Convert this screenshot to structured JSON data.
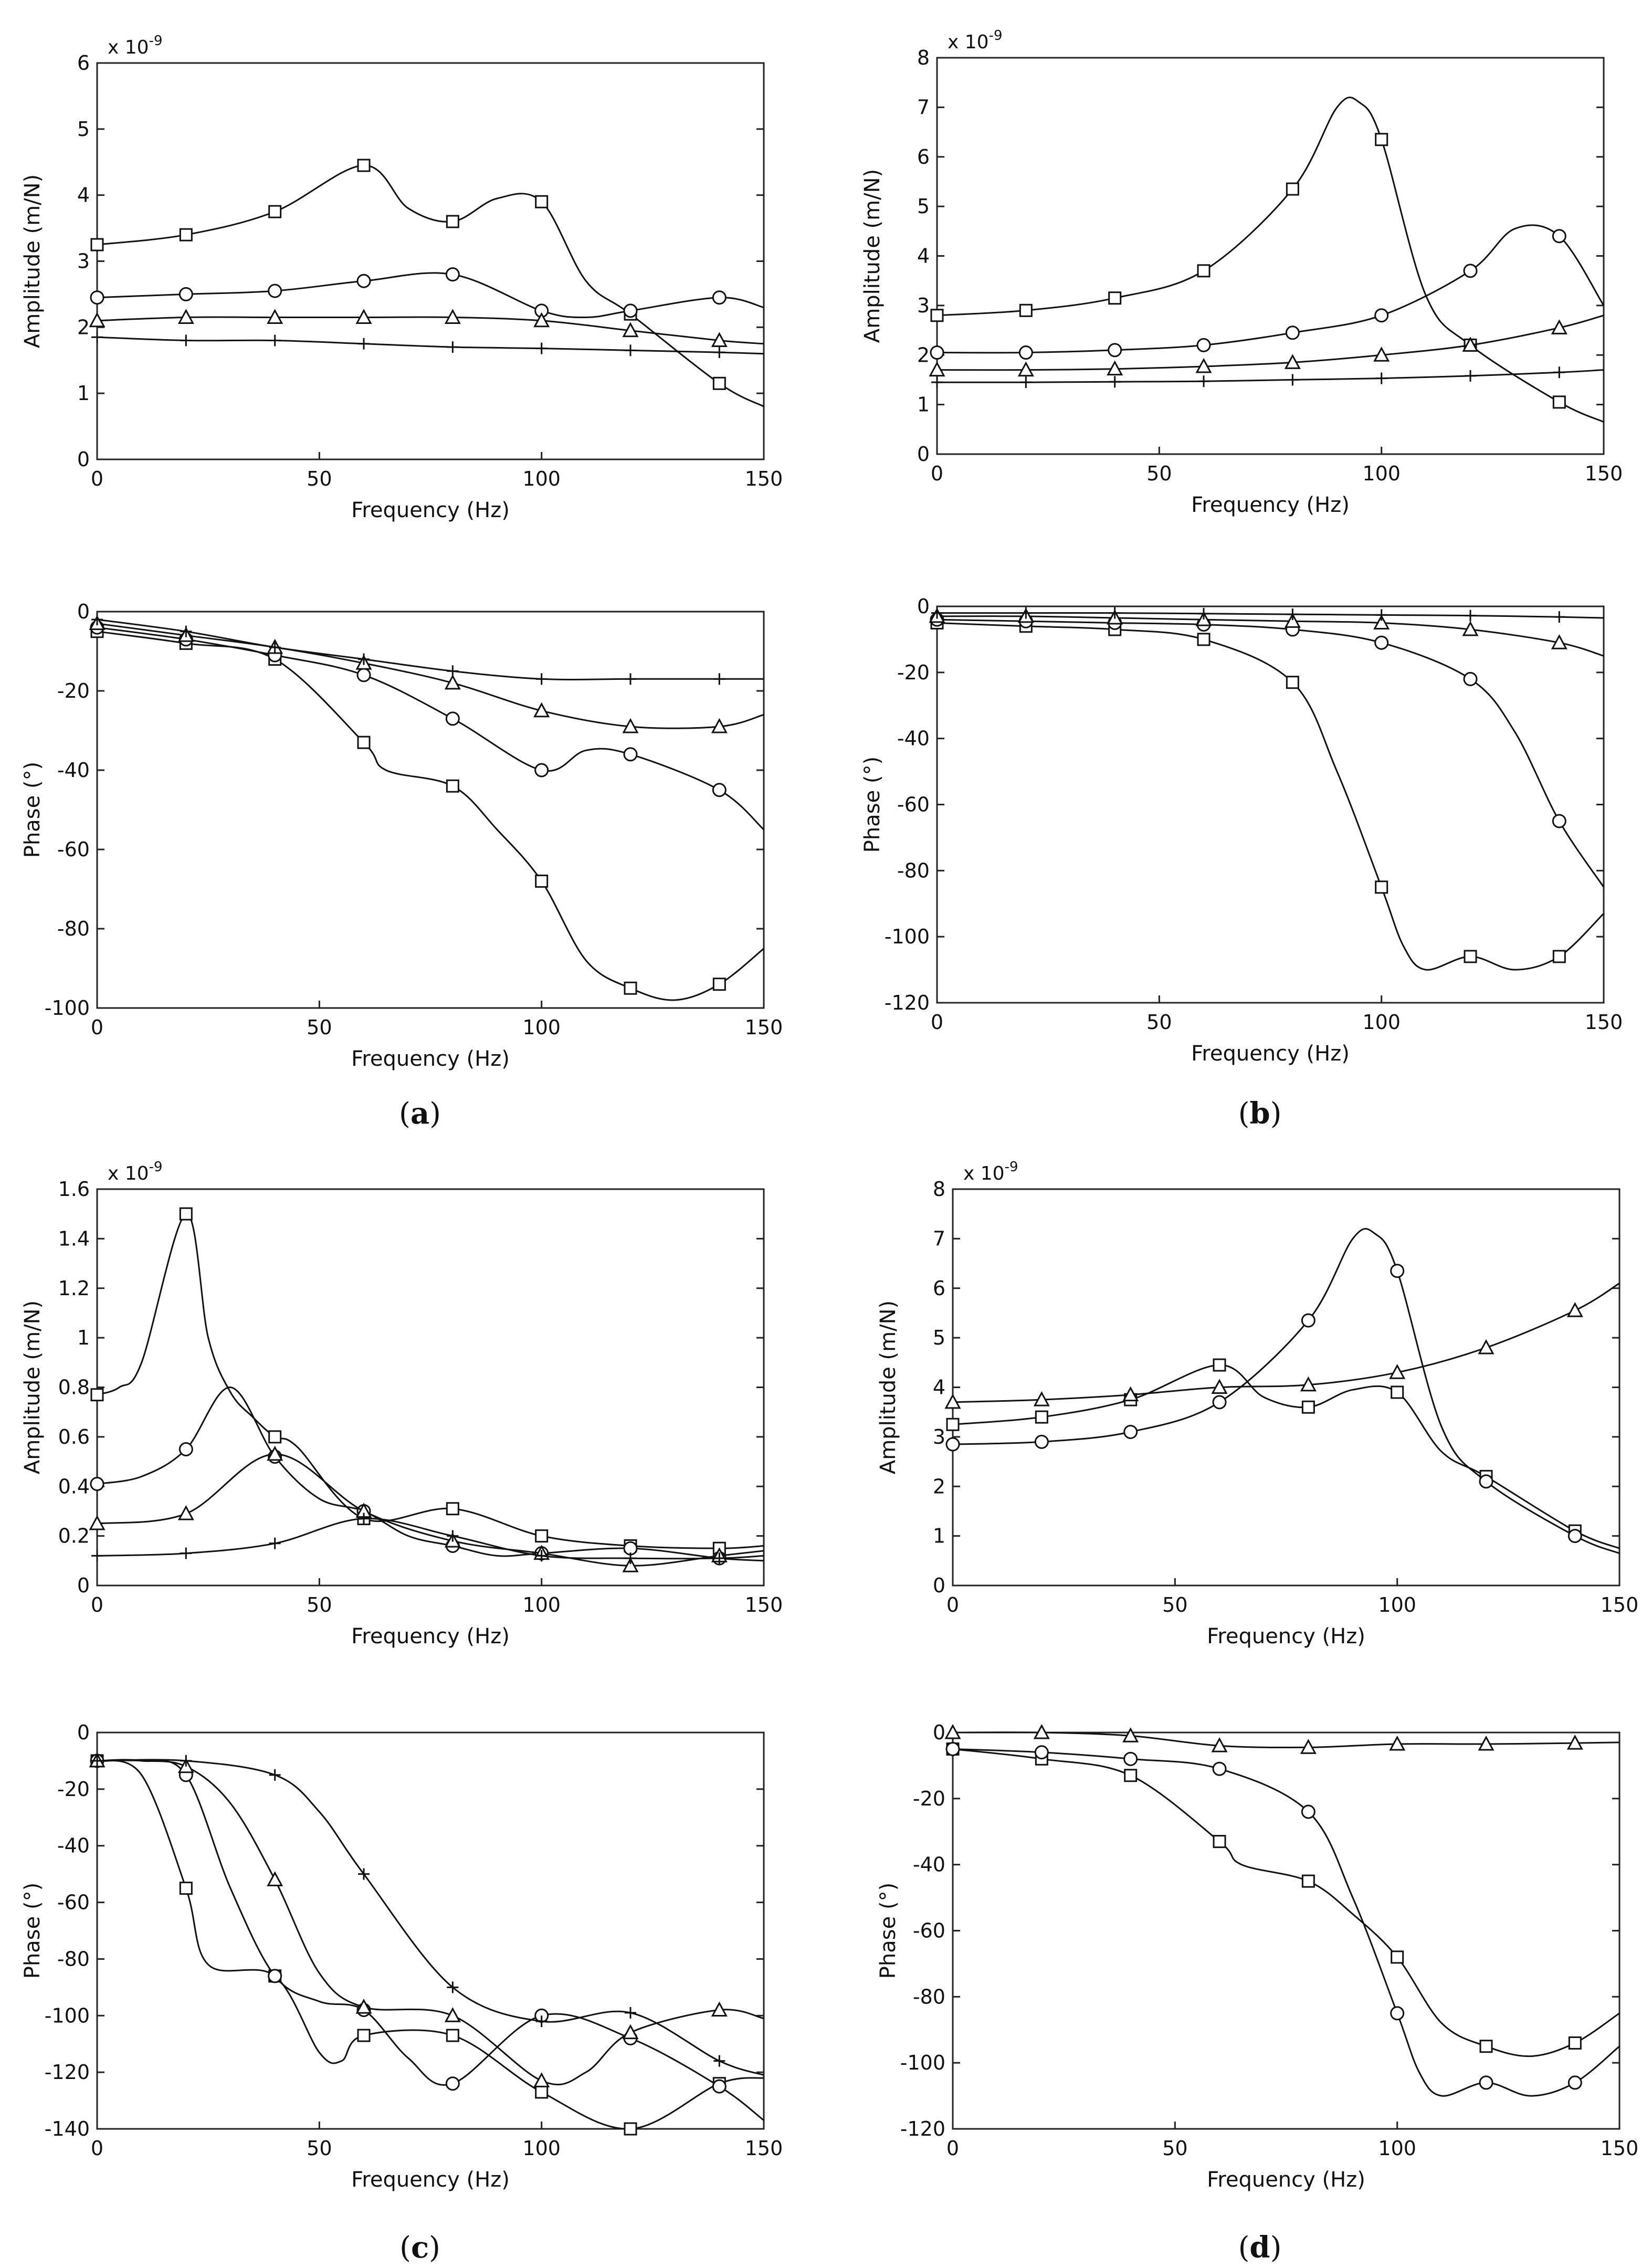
{
  "figure": {
    "panel_labels": [
      {
        "open": "(",
        "letter": "a",
        "close": ")"
      },
      {
        "open": "(",
        "letter": "b",
        "close": ")"
      },
      {
        "open": "(",
        "letter": "c",
        "close": ")"
      },
      {
        "open": "(",
        "letter": "d",
        "close": ")"
      }
    ]
  },
  "chart_data": [
    {
      "id": "a_amp",
      "type": "line",
      "panel": "a",
      "xlabel": "Frequency (Hz)",
      "ylabel": "Amplitude (m/N)",
      "xlim": [
        0,
        150
      ],
      "ylim": [
        0,
        6
      ],
      "xticks": [
        "0",
        "50",
        "100",
        "150"
      ],
      "yticks": [
        "0",
        "1",
        "2",
        "3",
        "4",
        "5",
        "6"
      ],
      "exponent": {
        "base": "x 10",
        "power": "-9"
      },
      "series": [
        {
          "marker": "square",
          "x": [
            0,
            20,
            40,
            60,
            70,
            80,
            90,
            100,
            110,
            120,
            140,
            150
          ],
          "y": [
            3.25,
            3.4,
            3.75,
            4.45,
            3.8,
            3.6,
            3.95,
            3.9,
            2.7,
            2.2,
            1.15,
            0.8
          ]
        },
        {
          "marker": "circle",
          "x": [
            0,
            20,
            40,
            60,
            80,
            100,
            110,
            120,
            140,
            150
          ],
          "y": [
            2.45,
            2.5,
            2.55,
            2.7,
            2.8,
            2.25,
            2.15,
            2.25,
            2.45,
            2.3
          ]
        },
        {
          "marker": "triangle",
          "x": [
            0,
            20,
            40,
            60,
            80,
            100,
            120,
            140,
            150
          ],
          "y": [
            2.1,
            2.15,
            2.15,
            2.15,
            2.15,
            2.1,
            1.95,
            1.8,
            1.75
          ]
        },
        {
          "marker": "plus",
          "x": [
            0,
            20,
            40,
            60,
            80,
            100,
            120,
            140,
            150
          ],
          "y": [
            1.85,
            1.8,
            1.8,
            1.75,
            1.7,
            1.68,
            1.65,
            1.62,
            1.6
          ]
        }
      ]
    },
    {
      "id": "a_phase",
      "type": "line",
      "panel": "a",
      "xlabel": "Frequency (Hz)",
      "ylabel": "Phase (°)",
      "xlim": [
        0,
        150
      ],
      "ylim": [
        -100,
        0
      ],
      "xticks": [
        "0",
        "50",
        "100",
        "150"
      ],
      "yticks": [
        "-100",
        "-80",
        "-60",
        "-40",
        "-20",
        "0"
      ],
      "series": [
        {
          "marker": "square",
          "x": [
            0,
            20,
            40,
            60,
            65,
            80,
            90,
            100,
            110,
            120,
            130,
            140,
            150
          ],
          "y": [
            -5,
            -8,
            -12,
            -33,
            -40,
            -44,
            -55,
            -68,
            -88,
            -95,
            -98,
            -94,
            -85
          ]
        },
        {
          "marker": "circle",
          "x": [
            0,
            20,
            40,
            60,
            80,
            100,
            110,
            120,
            140,
            150
          ],
          "y": [
            -4,
            -7,
            -11,
            -16,
            -27,
            -40,
            -35,
            -36,
            -45,
            -55
          ]
        },
        {
          "marker": "triangle",
          "x": [
            0,
            20,
            40,
            60,
            80,
            100,
            120,
            140,
            150
          ],
          "y": [
            -3,
            -6,
            -9,
            -13,
            -18,
            -25,
            -29,
            -29,
            -26
          ]
        },
        {
          "marker": "plus",
          "x": [
            0,
            20,
            40,
            60,
            80,
            100,
            120,
            140,
            150
          ],
          "y": [
            -2,
            -5,
            -9,
            -12,
            -15,
            -17,
            -17,
            -17,
            -17
          ]
        }
      ]
    },
    {
      "id": "b_amp",
      "type": "line",
      "panel": "b",
      "xlabel": "Frequency (Hz)",
      "ylabel": "Amplitude (m/N)",
      "xlim": [
        0,
        150
      ],
      "ylim": [
        0,
        8
      ],
      "xticks": [
        "0",
        "50",
        "100",
        "150"
      ],
      "yticks": [
        "0",
        "1",
        "2",
        "3",
        "4",
        "5",
        "6",
        "7",
        "8"
      ],
      "exponent": {
        "base": "x 10",
        "power": "-9"
      },
      "series": [
        {
          "marker": "square",
          "x": [
            0,
            20,
            40,
            60,
            80,
            90,
            95,
            100,
            110,
            120,
            140,
            150
          ],
          "y": [
            2.8,
            2.9,
            3.15,
            3.7,
            5.35,
            7.0,
            7.1,
            6.35,
            3.2,
            2.2,
            1.05,
            0.65
          ]
        },
        {
          "marker": "circle",
          "x": [
            0,
            20,
            40,
            60,
            80,
            100,
            120,
            130,
            140,
            150
          ],
          "y": [
            2.05,
            2.05,
            2.1,
            2.2,
            2.45,
            2.8,
            3.7,
            4.55,
            4.4,
            3.0
          ]
        },
        {
          "marker": "triangle",
          "x": [
            0,
            20,
            40,
            60,
            80,
            100,
            120,
            140,
            150
          ],
          "y": [
            1.7,
            1.7,
            1.72,
            1.77,
            1.85,
            2.0,
            2.2,
            2.55,
            2.8
          ]
        },
        {
          "marker": "plus",
          "x": [
            0,
            20,
            40,
            60,
            80,
            100,
            120,
            140,
            150
          ],
          "y": [
            1.45,
            1.45,
            1.46,
            1.47,
            1.5,
            1.53,
            1.58,
            1.65,
            1.7
          ]
        }
      ]
    },
    {
      "id": "b_phase",
      "type": "line",
      "panel": "b",
      "xlabel": "Frequency (Hz)",
      "ylabel": "Phase (°)",
      "xlim": [
        0,
        150
      ],
      "ylim": [
        -120,
        0
      ],
      "xticks": [
        "0",
        "50",
        "100",
        "150"
      ],
      "yticks": [
        "-120",
        "-100",
        "-80",
        "-60",
        "-40",
        "-20",
        "0"
      ],
      "series": [
        {
          "marker": "square",
          "x": [
            0,
            20,
            40,
            60,
            80,
            90,
            100,
            105,
            110,
            120,
            130,
            140,
            150
          ],
          "y": [
            -5,
            -6,
            -7,
            -10,
            -23,
            -50,
            -85,
            -103,
            -110,
            -106,
            -110,
            -106,
            -93
          ]
        },
        {
          "marker": "circle",
          "x": [
            0,
            20,
            40,
            60,
            80,
            100,
            120,
            130,
            140,
            150
          ],
          "y": [
            -4,
            -4.5,
            -5,
            -5.5,
            -7,
            -11,
            -22,
            -38,
            -65,
            -85
          ]
        },
        {
          "marker": "triangle",
          "x": [
            0,
            20,
            40,
            60,
            80,
            100,
            120,
            140,
            150
          ],
          "y": [
            -3,
            -3,
            -3.5,
            -4,
            -4.5,
            -5,
            -7,
            -11,
            -15
          ]
        },
        {
          "marker": "plus",
          "x": [
            0,
            20,
            40,
            60,
            80,
            100,
            120,
            140,
            150
          ],
          "y": [
            -2,
            -2,
            -2,
            -2.2,
            -2.4,
            -2.6,
            -2.8,
            -3.2,
            -3.5
          ]
        }
      ]
    },
    {
      "id": "c_amp",
      "type": "line",
      "panel": "c",
      "xlabel": "Frequency (Hz)",
      "ylabel": "Amplitude (m/N)",
      "xlim": [
        0,
        150
      ],
      "ylim": [
        0,
        1.6
      ],
      "xticks": [
        "0",
        "50",
        "100",
        "150"
      ],
      "yticks": [
        "0",
        "0.2",
        "0.4",
        "0.6",
        "0.8",
        "1",
        "1.2",
        "1.4",
        "1.6"
      ],
      "exponent": {
        "base": "x 10",
        "power": "-9"
      },
      "series": [
        {
          "marker": "square",
          "x": [
            0,
            5,
            10,
            20,
            25,
            30,
            35,
            40,
            45,
            60,
            80,
            100,
            120,
            140,
            150
          ],
          "y": [
            0.77,
            0.8,
            0.9,
            1.5,
            1.0,
            0.78,
            0.68,
            0.6,
            0.56,
            0.27,
            0.31,
            0.2,
            0.16,
            0.15,
            0.16
          ]
        },
        {
          "marker": "circle",
          "x": [
            0,
            10,
            20,
            30,
            40,
            50,
            60,
            70,
            80,
            90,
            100,
            120,
            140,
            150
          ],
          "y": [
            0.41,
            0.44,
            0.55,
            0.8,
            0.52,
            0.35,
            0.3,
            0.2,
            0.16,
            0.12,
            0.13,
            0.15,
            0.11,
            0.1
          ]
        },
        {
          "marker": "triangle",
          "x": [
            0,
            20,
            40,
            60,
            80,
            100,
            120,
            140,
            150
          ],
          "y": [
            0.25,
            0.29,
            0.53,
            0.3,
            0.18,
            0.13,
            0.08,
            0.12,
            0.14
          ]
        },
        {
          "marker": "plus",
          "x": [
            0,
            20,
            40,
            60,
            80,
            100,
            120,
            140,
            150
          ],
          "y": [
            0.12,
            0.13,
            0.17,
            0.27,
            0.2,
            0.12,
            0.11,
            0.11,
            0.12
          ]
        }
      ]
    },
    {
      "id": "c_phase",
      "type": "line",
      "panel": "c",
      "xlabel": "Frequency (Hz)",
      "ylabel": "Phase (°)",
      "xlim": [
        0,
        150
      ],
      "ylim": [
        -140,
        0
      ],
      "xticks": [
        "0",
        "50",
        "100",
        "150"
      ],
      "yticks": [
        "-140",
        "-120",
        "-100",
        "-80",
        "-60",
        "-40",
        "-20",
        "0"
      ],
      "series": [
        {
          "marker": "square",
          "x": [
            0,
            10,
            20,
            25,
            40,
            50,
            55,
            60,
            80,
            100,
            120,
            140,
            150
          ],
          "y": [
            -10,
            -15,
            -55,
            -82,
            -86,
            -113,
            -116,
            -107,
            -107,
            -127,
            -140,
            -124,
            -122
          ]
        },
        {
          "marker": "circle",
          "x": [
            0,
            10,
            20,
            30,
            40,
            50,
            60,
            70,
            80,
            100,
            120,
            140,
            150
          ],
          "y": [
            -10,
            -10,
            -15,
            -55,
            -86,
            -95,
            -98,
            -115,
            -124,
            -100,
            -108,
            -125,
            -137
          ]
        },
        {
          "marker": "triangle",
          "x": [
            0,
            10,
            20,
            30,
            40,
            50,
            60,
            80,
            100,
            110,
            120,
            140,
            150
          ],
          "y": [
            -10,
            -10,
            -12,
            -25,
            -52,
            -85,
            -97,
            -100,
            -123,
            -120,
            -106,
            -98,
            -101
          ]
        },
        {
          "marker": "plus",
          "x": [
            0,
            20,
            40,
            50,
            60,
            80,
            100,
            120,
            140,
            150
          ],
          "y": [
            -10,
            -10,
            -15,
            -28,
            -50,
            -90,
            -102,
            -99,
            -116,
            -121
          ]
        }
      ]
    },
    {
      "id": "d_amp",
      "type": "line",
      "panel": "d",
      "xlabel": "Frequency (Hz)",
      "ylabel": "Amplitude (m/N)",
      "xlim": [
        0,
        150
      ],
      "ylim": [
        0,
        8
      ],
      "xticks": [
        "0",
        "50",
        "100",
        "150"
      ],
      "yticks": [
        "0",
        "1",
        "2",
        "3",
        "4",
        "5",
        "6",
        "7",
        "8"
      ],
      "exponent": {
        "base": "x 10",
        "power": "-9"
      },
      "series": [
        {
          "marker": "square",
          "x": [
            0,
            20,
            40,
            60,
            70,
            80,
            90,
            100,
            110,
            120,
            140,
            150
          ],
          "y": [
            3.25,
            3.4,
            3.75,
            4.45,
            3.8,
            3.6,
            3.95,
            3.9,
            2.7,
            2.2,
            1.1,
            0.75
          ]
        },
        {
          "marker": "circle",
          "x": [
            0,
            20,
            40,
            60,
            80,
            90,
            95,
            100,
            110,
            120,
            140,
            150
          ],
          "y": [
            2.85,
            2.9,
            3.1,
            3.7,
            5.35,
            7.0,
            7.1,
            6.35,
            3.2,
            2.1,
            1.0,
            0.65
          ]
        },
        {
          "marker": "triangle",
          "x": [
            0,
            20,
            40,
            60,
            80,
            100,
            120,
            140,
            150
          ],
          "y": [
            3.7,
            3.75,
            3.85,
            4.0,
            4.05,
            4.3,
            4.8,
            5.55,
            6.1
          ]
        }
      ]
    },
    {
      "id": "d_phase",
      "type": "line",
      "panel": "d",
      "xlabel": "Frequency (Hz)",
      "ylabel": "Phase (°)",
      "xlim": [
        0,
        150
      ],
      "ylim": [
        -120,
        0
      ],
      "xticks": [
        "0",
        "50",
        "100",
        "150"
      ],
      "yticks": [
        "-120",
        "-100",
        "-80",
        "-60",
        "-40",
        "-20",
        "0"
      ],
      "series": [
        {
          "marker": "square",
          "x": [
            0,
            20,
            40,
            60,
            65,
            80,
            90,
            100,
            110,
            120,
            130,
            140,
            150
          ],
          "y": [
            -5,
            -8,
            -13,
            -33,
            -40,
            -45,
            -55,
            -68,
            -88,
            -95,
            -98,
            -94,
            -85
          ]
        },
        {
          "marker": "circle",
          "x": [
            0,
            20,
            40,
            60,
            80,
            90,
            100,
            105,
            110,
            120,
            130,
            140,
            150
          ],
          "y": [
            -5,
            -6,
            -8,
            -11,
            -24,
            -50,
            -85,
            -103,
            -110,
            -106,
            -110,
            -106,
            -95
          ]
        },
        {
          "marker": "triangle",
          "x": [
            0,
            20,
            40,
            60,
            80,
            100,
            120,
            140,
            150
          ],
          "y": [
            0,
            0,
            -1,
            -4,
            -4.5,
            -3.5,
            -3.5,
            -3.2,
            -3
          ]
        }
      ]
    }
  ]
}
